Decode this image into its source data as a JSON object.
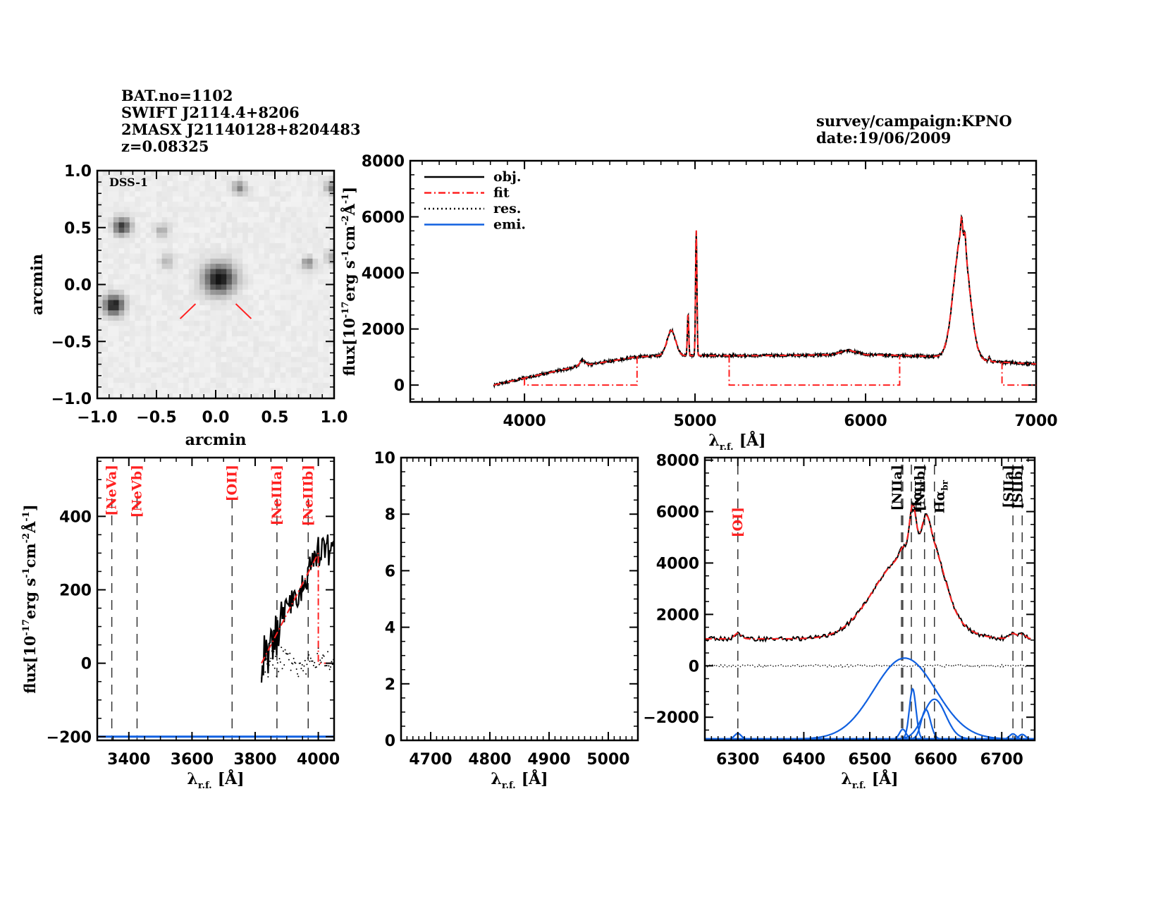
{
  "header": {
    "left_lines": [
      "BAT.no=1102",
      "SWIFT J2114.4+8206",
      "2MASX J21140128+8204483",
      "z=0.08325"
    ],
    "right_lines": [
      "survey/campaign:KPNO",
      "date:19/06/2009"
    ]
  },
  "colors": {
    "obj": "#000000",
    "fit": "#ff2020",
    "res": "#000000",
    "emi": "#1060e0",
    "line_label_red": "#ff2020"
  },
  "chart_data": [
    {
      "id": "image",
      "type": "heatmap",
      "title": "DSS-1",
      "xlabel": "arcmin",
      "ylabel": "arcmin",
      "xlim": [
        -1.0,
        1.0
      ],
      "ylim": [
        -1.0,
        1.0
      ],
      "xticks": [
        "-1.0",
        "-0.5",
        "0.0",
        "0.5",
        "1.0"
      ],
      "yticks": [
        "-1.0",
        "-0.5",
        "0.0",
        "0.5",
        "1.0"
      ],
      "sources": [
        {
          "x": 0.03,
          "y": 0.05,
          "strength": 1.0,
          "size": 0.09
        },
        {
          "x": -0.86,
          "y": -0.18,
          "strength": 0.95,
          "size": 0.06
        },
        {
          "x": -0.79,
          "y": 0.51,
          "strength": 0.8,
          "size": 0.05
        },
        {
          "x": 0.2,
          "y": 0.85,
          "strength": 0.45,
          "size": 0.04
        },
        {
          "x": -0.45,
          "y": 0.47,
          "strength": 0.3,
          "size": 0.04
        },
        {
          "x": -0.41,
          "y": 0.2,
          "strength": 0.25,
          "size": 0.04
        },
        {
          "x": 0.78,
          "y": 0.19,
          "strength": 0.5,
          "size": 0.035
        },
        {
          "x": 0.99,
          "y": 0.85,
          "strength": 0.55,
          "size": 0.04
        },
        {
          "x": 0.98,
          "y": 0.23,
          "strength": 0.3,
          "size": 0.04
        }
      ],
      "marker_lines": [
        {
          "x1": -0.17,
          "y1": -0.17,
          "x2": -0.3,
          "y2": -0.3
        },
        {
          "x1": 0.17,
          "y1": -0.17,
          "x2": 0.3,
          "y2": -0.3
        }
      ]
    },
    {
      "id": "full",
      "type": "line",
      "xlabel": "λr.f. [Å]",
      "ylabel": "flux[10^-17 erg s^-1 cm^-2 Å^-1]",
      "xlim": [
        3330,
        7000
      ],
      "ylim": [
        -600,
        8000
      ],
      "xticks": [
        4000,
        5000,
        6000,
        7000
      ],
      "yticks": [
        0,
        2000,
        4000,
        6000,
        8000
      ],
      "legend": {
        "placement": "top-left",
        "entries": [
          "obj.",
          "fit",
          "res.",
          "emi."
        ]
      },
      "continuum": {
        "x": [
          3820,
          4000,
          4300,
          4650,
          4800,
          5050,
          5400,
          5800,
          5900,
          6000,
          6200,
          6400,
          6700,
          7000
        ],
        "y": [
          0,
          250,
          650,
          1000,
          1050,
          1050,
          1050,
          1080,
          1250,
          1080,
          1060,
          1020,
          850,
          750
        ]
      },
      "lines": [
        {
          "center": 4340,
          "amp": 200,
          "sigma": 15
        },
        {
          "center": 4861,
          "amp": 900,
          "sigma": 25
        },
        {
          "center": 4959,
          "amp": 1500,
          "sigma": 4
        },
        {
          "center": 5007,
          "amp": 4500,
          "sigma": 4
        },
        {
          "center": 6563,
          "amp": 4400,
          "sigma": 45
        },
        {
          "center": 6563,
          "amp": 700,
          "sigma": 5
        },
        {
          "center": 6583,
          "amp": 500,
          "sigma": 5
        },
        {
          "center": 6725,
          "amp": 150,
          "sigma": 5
        }
      ],
      "fit_windows": [
        {
          "start": 4000,
          "end": 4660
        },
        {
          "start": 5200,
          "end": 6200
        },
        {
          "start": 6800,
          "end": 7000
        }
      ]
    },
    {
      "id": "blue",
      "type": "line",
      "xlabel": "λr.f. [Å]",
      "ylabel": "flux[10^-17 erg s^-1 cm^-2 Å^-1]",
      "xlim": [
        3300,
        4050
      ],
      "ylim": [
        -210,
        560
      ],
      "xticks": [
        3400,
        3600,
        3800,
        4000
      ],
      "yticks": [
        -200,
        0,
        200,
        400
      ],
      "data_range": [
        3820,
        4050
      ],
      "fit_line": {
        "x": [
          3820,
          4000
        ],
        "y": [
          0,
          300
        ]
      },
      "fit_drop_at": 4000,
      "emission_baseline": -200,
      "line_markers": [
        {
          "label": "[NeVa]",
          "x": 3346
        },
        {
          "label": "[NeVb]",
          "x": 3426
        },
        {
          "label": "[OII]",
          "x": 3727
        },
        {
          "label": "[NeIIIa]",
          "x": 3869
        },
        {
          "label": "[NeIIIb]",
          "x": 3968
        }
      ]
    },
    {
      "id": "hbeta",
      "type": "line",
      "xlabel": "λr.f. [Å]",
      "ylabel": "",
      "xlim": [
        4650,
        5050
      ],
      "ylim": [
        0,
        10
      ],
      "xticks": [
        4700,
        4800,
        4900,
        5000
      ],
      "yticks": [
        0,
        2,
        4,
        6,
        8,
        10
      ]
    },
    {
      "id": "halpha",
      "type": "line",
      "xlabel": "λr.f. [Å]",
      "ylabel": "",
      "xlim": [
        6250,
        6750
      ],
      "ylim": [
        -2900,
        8100
      ],
      "xticks": [
        6300,
        6400,
        6500,
        6600,
        6700
      ],
      "yticks": [
        -2000,
        0,
        2000,
        4000,
        6000,
        8000
      ],
      "emission_baseline": -2850,
      "continuum": 1050,
      "components": [
        {
          "name": "Hα broad",
          "center": 6553,
          "amp": 3150,
          "sigma": 47
        },
        {
          "name": "Hα narrow",
          "center": 6565,
          "amp": 1950,
          "sigma": 5
        },
        {
          "name": "[NII]a",
          "center": 6550,
          "amp": 380,
          "sigma": 5
        },
        {
          "name": "[NII]b",
          "center": 6585,
          "amp": 1150,
          "sigma": 7
        },
        {
          "name": "Hα broad 2",
          "center": 6598,
          "amp": 1550,
          "sigma": 17
        },
        {
          "name": "[OI]",
          "center": 6300,
          "amp": 220,
          "sigma": 5
        },
        {
          "name": "[SII]a",
          "center": 6717,
          "amp": 200,
          "sigma": 5
        },
        {
          "name": "[SII]b",
          "center": 6731,
          "amp": 180,
          "sigma": 5
        }
      ],
      "line_markers": [
        {
          "label": "[OI]",
          "x": 6300,
          "color": "red"
        },
        {
          "label": "[NIIa]",
          "x": 6548,
          "color": "black"
        },
        {
          "label": "Hαbr",
          "x": 6563,
          "color": "black",
          "sub": "br"
        },
        {
          "label": "[NIIb]",
          "x": 6583,
          "color": "black"
        },
        {
          "label": "Hαbr",
          "x": 6598,
          "color": "black",
          "sub": "br"
        },
        {
          "label": "[SIIa]",
          "x": 6717,
          "color": "black"
        },
        {
          "label": "[SIIb]",
          "x": 6731,
          "color": "black"
        }
      ],
      "extra_marker_x": [
        6550
      ]
    }
  ],
  "labels": {
    "arcmin": "arcmin",
    "lambda": "λ",
    "lambda_sub": "r.f.",
    "angstrom_bracket": "[Å]",
    "flux_prefix": "flux[10",
    "flux_exp1": "-17",
    "flux_erg": "erg s",
    "flux_exp2": "-1",
    "flux_cm": "cm",
    "flux_exp3": "-2",
    "flux_A": "Å",
    "flux_exp4": "-1",
    "flux_close": "]"
  }
}
